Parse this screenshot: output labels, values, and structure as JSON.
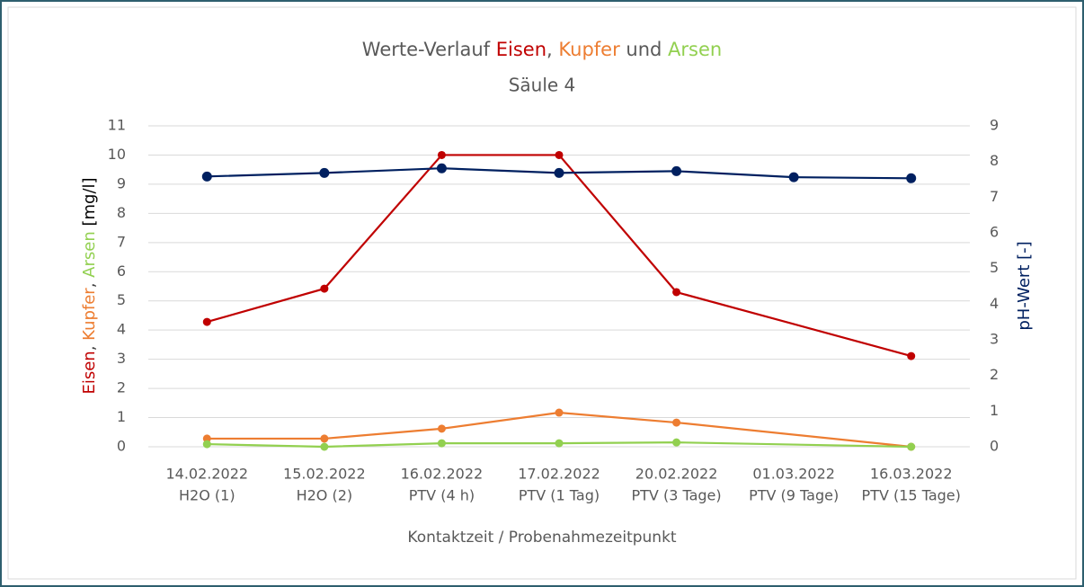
{
  "chart_data": {
    "type": "line",
    "title_parts": [
      {
        "text": "Werte-Verlauf ",
        "color": "#595959"
      },
      {
        "text": "Eisen",
        "color": "#c00000"
      },
      {
        "text": ", ",
        "color": "#595959"
      },
      {
        "text": "Kupfer",
        "color": "#ed7d31"
      },
      {
        "text": " und ",
        "color": "#595959"
      },
      {
        "text": "Arsen",
        "color": "#92d050"
      }
    ],
    "subtitle": "Säule 4",
    "y_label_parts": [
      {
        "text": "Eisen",
        "color": "#c00000"
      },
      {
        "text": ", ",
        "color": "#404040"
      },
      {
        "text": "Kupfer",
        "color": "#ed7d31"
      },
      {
        "text": ", ",
        "color": "#404040"
      },
      {
        "text": "Arsen",
        "color": "#92d050"
      },
      {
        "text": " [mg/l]",
        "color": "#000000"
      }
    ],
    "y2_label": "pH-Wert [-]",
    "y2_label_color": "#002060",
    "x_label": "Kontaktzeit / Probenahmezeitpunkt",
    "categories": [
      [
        "14.02.2022",
        "H2O (1)"
      ],
      [
        "15.02.2022",
        "H2O (2)"
      ],
      [
        "16.02.2022",
        "PTV (4 h)"
      ],
      [
        "17.02.2022",
        "PTV (1 Tag)"
      ],
      [
        "20.02.2022",
        "PTV (3 Tage)"
      ],
      [
        "01.03.2022",
        "PTV (9 Tage)"
      ],
      [
        "16.03.2022",
        "PTV (15 Tage)"
      ]
    ],
    "series": [
      {
        "name": "Eisen",
        "color": "#c00000",
        "axis": "y",
        "values": [
          4.28,
          5.42,
          10,
          10,
          5.3,
          null,
          3.11
        ]
      },
      {
        "name": "Kupfer",
        "color": "#ed7d31",
        "axis": "y",
        "values": [
          0.28,
          0.28,
          0.62,
          1.17,
          0.83,
          null,
          0
        ]
      },
      {
        "name": "Arsen",
        "color": "#92d050",
        "axis": "y",
        "values": [
          0.09,
          0,
          0.12,
          0.12,
          0.15,
          null,
          0
        ]
      },
      {
        "name": "pH-Wert",
        "color": "#002060",
        "axis": "y2",
        "values": [
          7.58,
          7.68,
          7.81,
          7.68,
          7.73,
          7.56,
          7.53
        ]
      }
    ],
    "span_gaps": true,
    "ylim": [
      0,
      11
    ],
    "yticks": [
      0,
      1,
      2,
      3,
      4,
      5,
      6,
      7,
      8,
      9,
      10,
      11
    ],
    "y2lim": [
      0,
      9
    ],
    "y2ticks": [
      0,
      1,
      2,
      3,
      4,
      5,
      6,
      7,
      8,
      9
    ],
    "grid": true
  }
}
